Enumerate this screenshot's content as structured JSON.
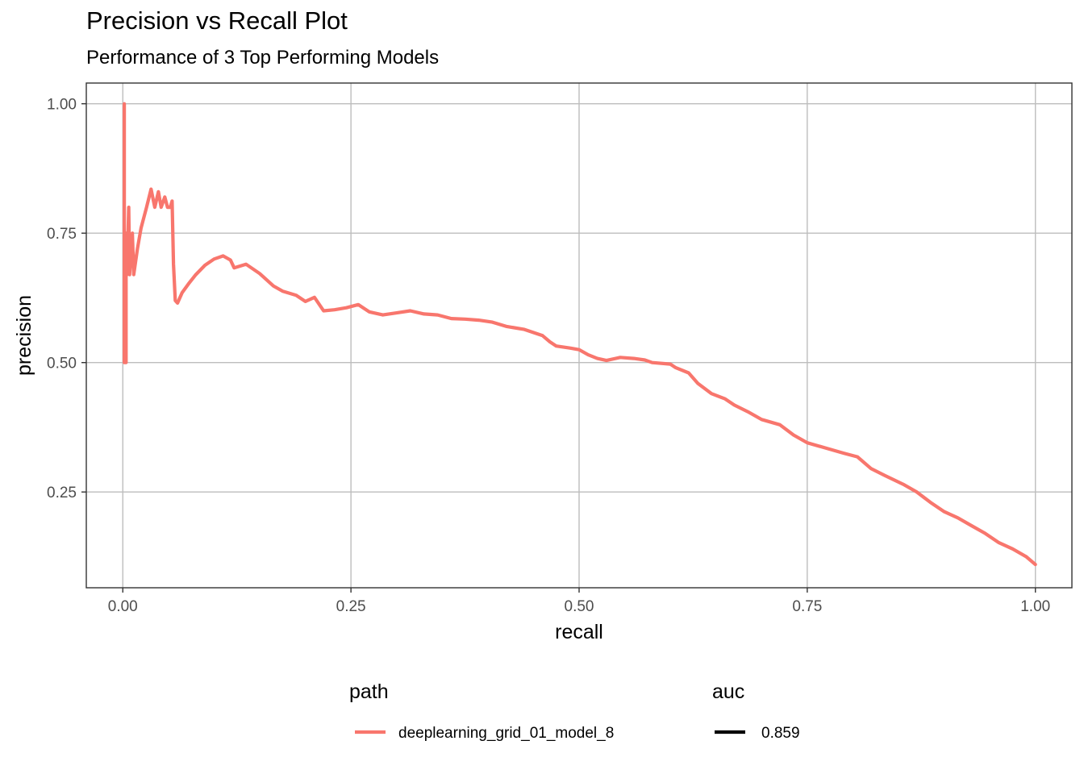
{
  "chart_data": {
    "type": "line",
    "title": "Precision vs Recall Plot",
    "subtitle": "Performance of 3 Top Performing Models",
    "xlabel": "recall",
    "ylabel": "precision",
    "xlim": [
      -0.04,
      1.04
    ],
    "ylim": [
      0.065,
      1.04
    ],
    "x_ticks": [
      "0.00",
      "0.25",
      "0.50",
      "0.75",
      "1.00"
    ],
    "y_ticks": [
      "0.25",
      "0.50",
      "0.75",
      "1.00"
    ],
    "grid": true,
    "legend_position": "bottom",
    "legends": [
      {
        "title": "path",
        "entries": [
          {
            "label": "deeplearning_grid_01_model_8",
            "color": "#F8766D"
          }
        ]
      },
      {
        "title": "auc",
        "entries": [
          {
            "label": "0.859",
            "color": "#000000"
          }
        ]
      }
    ],
    "series": [
      {
        "color": "#F8766D",
        "points": [
          [
            0.0016,
            1.0
          ],
          [
            0.0016,
            0.5
          ],
          [
            0.0036,
            0.5
          ],
          [
            0.0036,
            0.75
          ],
          [
            0.0045,
            0.67
          ],
          [
            0.0065,
            0.8
          ],
          [
            0.0075,
            0.67
          ],
          [
            0.0105,
            0.75
          ],
          [
            0.012,
            0.67
          ],
          [
            0.016,
            0.72
          ],
          [
            0.02,
            0.76
          ],
          [
            0.026,
            0.8
          ],
          [
            0.031,
            0.835
          ],
          [
            0.035,
            0.8
          ],
          [
            0.039,
            0.83
          ],
          [
            0.042,
            0.8
          ],
          [
            0.046,
            0.82
          ],
          [
            0.049,
            0.8
          ],
          [
            0.052,
            0.8
          ],
          [
            0.054,
            0.812
          ],
          [
            0.0555,
            0.69
          ],
          [
            0.0575,
            0.62
          ],
          [
            0.06,
            0.615
          ],
          [
            0.065,
            0.635
          ],
          [
            0.072,
            0.652
          ],
          [
            0.08,
            0.67
          ],
          [
            0.09,
            0.688
          ],
          [
            0.1,
            0.7
          ],
          [
            0.11,
            0.706
          ],
          [
            0.118,
            0.698
          ],
          [
            0.122,
            0.683
          ],
          [
            0.135,
            0.69
          ],
          [
            0.15,
            0.672
          ],
          [
            0.165,
            0.648
          ],
          [
            0.175,
            0.638
          ],
          [
            0.19,
            0.63
          ],
          [
            0.2,
            0.618
          ],
          [
            0.21,
            0.626
          ],
          [
            0.22,
            0.6
          ],
          [
            0.232,
            0.602
          ],
          [
            0.245,
            0.606
          ],
          [
            0.258,
            0.612
          ],
          [
            0.27,
            0.598
          ],
          [
            0.285,
            0.592
          ],
          [
            0.3,
            0.596
          ],
          [
            0.315,
            0.6
          ],
          [
            0.33,
            0.594
          ],
          [
            0.345,
            0.592
          ],
          [
            0.36,
            0.585
          ],
          [
            0.375,
            0.584
          ],
          [
            0.39,
            0.582
          ],
          [
            0.405,
            0.578
          ],
          [
            0.42,
            0.57
          ],
          [
            0.44,
            0.564
          ],
          [
            0.46,
            0.552
          ],
          [
            0.468,
            0.54
          ],
          [
            0.475,
            0.532
          ],
          [
            0.49,
            0.528
          ],
          [
            0.5,
            0.525
          ],
          [
            0.51,
            0.515
          ],
          [
            0.52,
            0.508
          ],
          [
            0.53,
            0.504
          ],
          [
            0.545,
            0.51
          ],
          [
            0.56,
            0.508
          ],
          [
            0.572,
            0.505
          ],
          [
            0.58,
            0.5
          ],
          [
            0.6,
            0.497
          ],
          [
            0.606,
            0.49
          ],
          [
            0.62,
            0.48
          ],
          [
            0.63,
            0.46
          ],
          [
            0.645,
            0.44
          ],
          [
            0.66,
            0.43
          ],
          [
            0.67,
            0.418
          ],
          [
            0.685,
            0.405
          ],
          [
            0.7,
            0.39
          ],
          [
            0.72,
            0.38
          ],
          [
            0.735,
            0.36
          ],
          [
            0.75,
            0.345
          ],
          [
            0.77,
            0.335
          ],
          [
            0.79,
            0.325
          ],
          [
            0.805,
            0.318
          ],
          [
            0.82,
            0.295
          ],
          [
            0.835,
            0.282
          ],
          [
            0.855,
            0.265
          ],
          [
            0.87,
            0.25
          ],
          [
            0.885,
            0.23
          ],
          [
            0.9,
            0.212
          ],
          [
            0.915,
            0.2
          ],
          [
            0.93,
            0.185
          ],
          [
            0.945,
            0.17
          ],
          [
            0.96,
            0.152
          ],
          [
            0.975,
            0.14
          ],
          [
            0.99,
            0.125
          ],
          [
            1.0,
            0.11
          ]
        ]
      }
    ]
  }
}
